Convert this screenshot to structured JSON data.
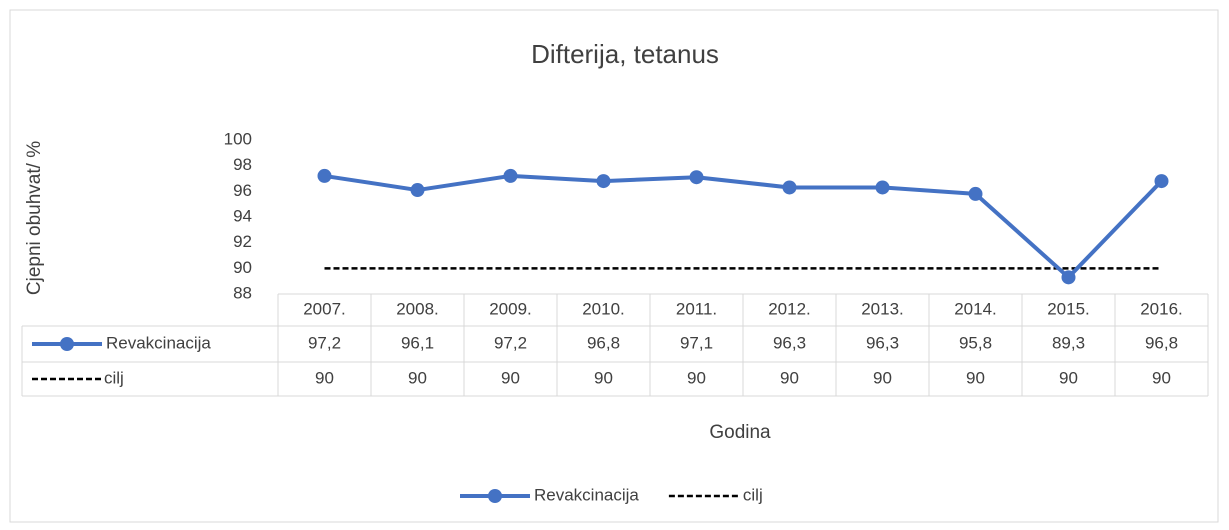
{
  "chart_data": {
    "type": "line",
    "title": "Difterija, tetanus",
    "x_label": "Godina",
    "y_label": "Cjepni obuhvat/ %",
    "categories": [
      "2007.",
      "2008.",
      "2009.",
      "2010.",
      "2011.",
      "2012.",
      "2013.",
      "2014.",
      "2015.",
      "2016."
    ],
    "series": [
      {
        "name": "Revakcinacija",
        "color": "#4472c4",
        "dash": false,
        "marker": true,
        "values": [
          97.2,
          96.1,
          97.2,
          96.8,
          97.1,
          96.3,
          96.3,
          95.8,
          89.3,
          96.8
        ],
        "value_labels": [
          "97,2",
          "96,1",
          "97,2",
          "96,8",
          "97,1",
          "96,3",
          "96,3",
          "95,8",
          "89,3",
          "96,8"
        ]
      },
      {
        "name": "cilj",
        "color": "#000000",
        "dash": true,
        "marker": false,
        "values": [
          90,
          90,
          90,
          90,
          90,
          90,
          90,
          90,
          90,
          90
        ]
      }
    ],
    "ylim": [
      88,
      100
    ],
    "yticks": [
      88,
      90,
      92,
      94,
      96,
      98,
      100
    ],
    "grid": false,
    "legend": "bottom"
  }
}
